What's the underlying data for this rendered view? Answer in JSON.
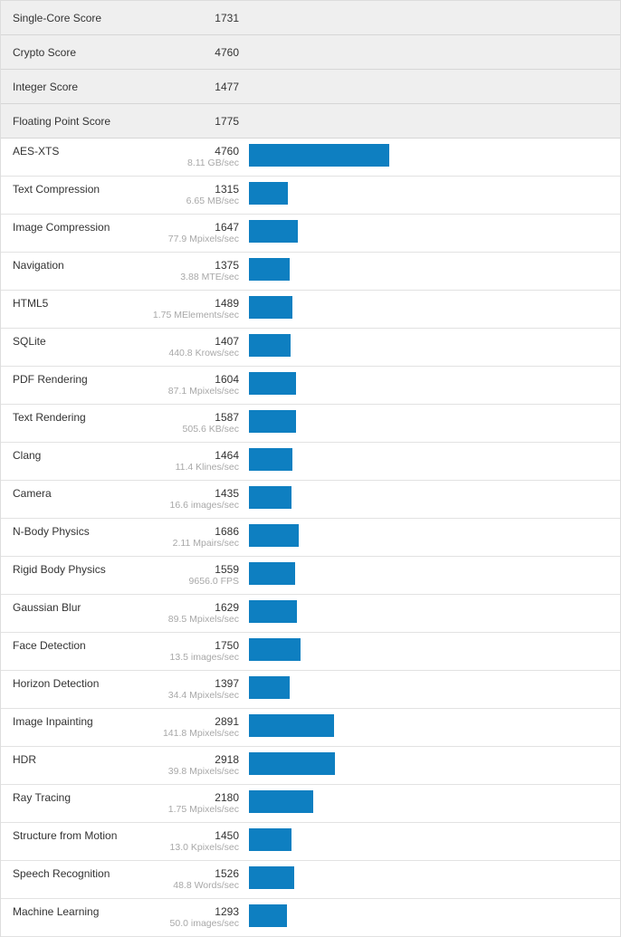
{
  "summary": [
    {
      "name": "Single-Core Score",
      "score": "1731"
    },
    {
      "name": "Crypto Score",
      "score": "4760"
    },
    {
      "name": "Integer Score",
      "score": "1477"
    },
    {
      "name": "Floating Point Score",
      "score": "1775"
    }
  ],
  "bar_color": "#0e7fc1",
  "bar_scale_max": 4760,
  "benchmarks": [
    {
      "name": "AES-XTS",
      "score": "4760",
      "rate": "8.11 GB/sec",
      "value": 4760
    },
    {
      "name": "Text Compression",
      "score": "1315",
      "rate": "6.65 MB/sec",
      "value": 1315
    },
    {
      "name": "Image Compression",
      "score": "1647",
      "rate": "77.9 Mpixels/sec",
      "value": 1647
    },
    {
      "name": "Navigation",
      "score": "1375",
      "rate": "3.88 MTE/sec",
      "value": 1375
    },
    {
      "name": "HTML5",
      "score": "1489",
      "rate": "1.75 MElements/sec",
      "value": 1489
    },
    {
      "name": "SQLite",
      "score": "1407",
      "rate": "440.8 Krows/sec",
      "value": 1407
    },
    {
      "name": "PDF Rendering",
      "score": "1604",
      "rate": "87.1 Mpixels/sec",
      "value": 1604
    },
    {
      "name": "Text Rendering",
      "score": "1587",
      "rate": "505.6 KB/sec",
      "value": 1587
    },
    {
      "name": "Clang",
      "score": "1464",
      "rate": "11.4 Klines/sec",
      "value": 1464
    },
    {
      "name": "Camera",
      "score": "1435",
      "rate": "16.6 images/sec",
      "value": 1435
    },
    {
      "name": "N-Body Physics",
      "score": "1686",
      "rate": "2.11 Mpairs/sec",
      "value": 1686
    },
    {
      "name": "Rigid Body Physics",
      "score": "1559",
      "rate": "9656.0 FPS",
      "value": 1559
    },
    {
      "name": "Gaussian Blur",
      "score": "1629",
      "rate": "89.5 Mpixels/sec",
      "value": 1629
    },
    {
      "name": "Face Detection",
      "score": "1750",
      "rate": "13.5 images/sec",
      "value": 1750
    },
    {
      "name": "Horizon Detection",
      "score": "1397",
      "rate": "34.4 Mpixels/sec",
      "value": 1397
    },
    {
      "name": "Image Inpainting",
      "score": "2891",
      "rate": "141.8 Mpixels/sec",
      "value": 2891
    },
    {
      "name": "HDR",
      "score": "2918",
      "rate": "39.8 Mpixels/sec",
      "value": 2918
    },
    {
      "name": "Ray Tracing",
      "score": "2180",
      "rate": "1.75 Mpixels/sec",
      "value": 2180
    },
    {
      "name": "Structure from Motion",
      "score": "1450",
      "rate": "13.0 Kpixels/sec",
      "value": 1450
    },
    {
      "name": "Speech Recognition",
      "score": "1526",
      "rate": "48.8 Words/sec",
      "value": 1526
    },
    {
      "name": "Machine Learning",
      "score": "1293",
      "rate": "50.0 images/sec",
      "value": 1293
    }
  ]
}
